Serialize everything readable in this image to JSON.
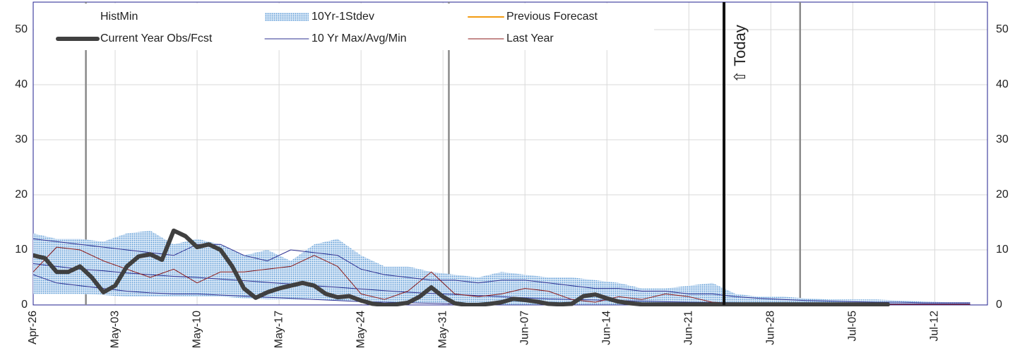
{
  "chart_data": {
    "type": "line",
    "xlim": [
      0,
      81.5
    ],
    "ylim": [
      0,
      55
    ],
    "y2lim": [
      0,
      55
    ],
    "xticks": [
      {
        "value": 0,
        "label": "Apr-26"
      },
      {
        "value": 7,
        "label": "May-03"
      },
      {
        "value": 14,
        "label": "May-10"
      },
      {
        "value": 21,
        "label": "May-17"
      },
      {
        "value": 28,
        "label": "May-24"
      },
      {
        "value": 35,
        "label": "May-31"
      },
      {
        "value": 42,
        "label": "Jun-07"
      },
      {
        "value": 49,
        "label": "Jun-14"
      },
      {
        "value": 56,
        "label": "Jun-21"
      },
      {
        "value": 63,
        "label": "Jun-28"
      },
      {
        "value": 70,
        "label": "Jul-05"
      },
      {
        "value": 77,
        "label": "Jul-12"
      }
    ],
    "yticks": [
      0,
      10,
      20,
      30,
      40,
      50
    ],
    "y2ticks": [
      0,
      10,
      20,
      30,
      40,
      50
    ],
    "grid": true,
    "month_lines": [
      4.5,
      35.5,
      65.5
    ],
    "today": {
      "x": 59,
      "label": "⇧ Today"
    },
    "series": [
      {
        "name": "HistMin",
        "style": "line",
        "color": "none",
        "width": 1,
        "x": [
          0,
          2,
          4,
          6,
          8,
          10,
          12,
          14,
          16,
          18,
          20,
          22,
          24,
          26,
          28,
          30,
          32,
          34,
          36,
          38,
          40,
          42,
          44,
          46,
          48,
          50,
          52,
          54,
          56,
          58,
          60,
          62,
          64,
          66,
          68,
          70,
          72,
          74,
          76,
          78,
          80
        ],
        "values": [
          0,
          0,
          0,
          0,
          0,
          0,
          0,
          0,
          0,
          0,
          0,
          0,
          0,
          0,
          0,
          0,
          0,
          0,
          0,
          0,
          0,
          0,
          0,
          0,
          0,
          0,
          0,
          0,
          0,
          0,
          0,
          0,
          0,
          0,
          0,
          0,
          0,
          0,
          0,
          0,
          0
        ]
      },
      {
        "name": "Current Year Obs/Fcst",
        "style": "line",
        "color": "#404040",
        "width": 6,
        "x": [
          0,
          1,
          2,
          3,
          4,
          5,
          6,
          7,
          8,
          9,
          10,
          11,
          12,
          13,
          14,
          15,
          16,
          17,
          18,
          19,
          20,
          21,
          22,
          23,
          24,
          25,
          26,
          27,
          28,
          29,
          30,
          31,
          32,
          33,
          34,
          35,
          36,
          37,
          38,
          39,
          40,
          41,
          42,
          43,
          44,
          45,
          46,
          47,
          48,
          49,
          50,
          51,
          52,
          53,
          54,
          55,
          56,
          57,
          58,
          59,
          60,
          61,
          62,
          63,
          64,
          65,
          66,
          67,
          68,
          69,
          70,
          71,
          72,
          73
        ],
        "values": [
          9,
          8.5,
          6,
          6,
          7,
          5,
          2.3,
          3.5,
          7,
          8.8,
          9.2,
          8.2,
          13.5,
          12.5,
          10.5,
          11,
          10,
          7,
          3,
          1.3,
          2.3,
          3,
          3.5,
          4,
          3.5,
          2,
          1.4,
          1.6,
          0.8,
          0.2,
          0,
          0.1,
          0.4,
          1.5,
          3.2,
          1.5,
          0.3,
          0,
          0,
          0.2,
          0.5,
          1.1,
          0.9,
          0.6,
          0.2,
          0.1,
          0.2,
          1.6,
          1.9,
          1.2,
          0.6,
          0.3,
          0.1,
          0.1,
          0.1,
          0.1,
          0.1,
          0.1,
          0.1,
          0.1,
          0.1,
          0.1,
          0.1,
          0.1,
          0.1,
          0.1,
          0.1,
          0.1,
          0.1,
          0.1,
          0.1,
          0.1,
          0.1,
          0.1
        ]
      },
      {
        "name": "10Yr-1Stdev",
        "style": "band",
        "color": "#5b9bd5",
        "x": [
          0,
          2,
          4,
          6,
          8,
          10,
          12,
          14,
          16,
          18,
          20,
          22,
          24,
          26,
          28,
          30,
          32,
          34,
          36,
          38,
          40,
          42,
          44,
          46,
          48,
          50,
          52,
          54,
          56,
          58,
          60,
          62,
          64,
          66,
          68,
          70,
          72,
          74,
          76,
          78,
          80
        ],
        "upper": [
          13,
          12,
          12,
          11.5,
          13,
          13.5,
          11,
          12,
          11,
          9,
          10,
          8,
          11,
          12,
          9,
          7,
          7,
          6,
          5.5,
          5,
          6,
          5.5,
          5,
          5,
          4.5,
          4,
          3,
          3,
          3.5,
          4,
          2,
          1.5,
          1.5,
          1.2,
          1,
          1,
          1,
          0.8,
          0.6,
          0.5,
          0.5
        ],
        "lower": [
          2,
          2,
          2,
          1.8,
          1.5,
          1.5,
          1.5,
          1.5,
          1.5,
          1.2,
          1,
          1,
          1,
          0.8,
          0.6,
          0.5,
          0.5,
          0.4,
          0.3,
          0.2,
          0,
          0,
          0,
          0,
          0,
          0,
          0,
          0,
          0,
          0,
          0,
          0,
          0,
          0,
          0,
          0,
          0,
          0,
          0,
          0,
          0
        ]
      },
      {
        "name": "10 Yr Max/Avg/Min",
        "style": "maxavgmin",
        "color": "#2e3192",
        "width": 1,
        "x": [
          0,
          2,
          4,
          6,
          8,
          10,
          12,
          14,
          16,
          18,
          20,
          22,
          24,
          26,
          28,
          30,
          32,
          34,
          36,
          38,
          40,
          42,
          44,
          46,
          48,
          50,
          52,
          54,
          56,
          58,
          60,
          62,
          64,
          66,
          68,
          70,
          72,
          74,
          76,
          78,
          80
        ],
        "max": [
          12,
          11.5,
          11,
          10.5,
          10,
          9.5,
          9,
          11,
          11,
          9,
          8,
          10,
          9.5,
          9,
          6.5,
          5.5,
          5,
          4.5,
          4.5,
          4,
          4.5,
          4.5,
          4,
          3.5,
          3,
          3,
          2.5,
          2.5,
          2,
          2,
          1.5,
          1.2,
          1,
          0.8,
          0.7,
          0.6,
          0.5,
          0.5,
          0.4,
          0.4,
          0.4
        ],
        "avg": [
          7.5,
          7,
          6.5,
          6.2,
          5.8,
          5.5,
          5.2,
          5,
          4.7,
          4.4,
          4.1,
          3.8,
          3.5,
          3.2,
          2.9,
          2.6,
          2.3,
          2.1,
          1.9,
          1.7,
          1.5,
          1.3,
          1.1,
          1,
          0.9,
          0.8,
          0.7,
          0.6,
          0.5,
          0.45,
          0.4,
          0.35,
          0.3,
          0.3,
          0.25,
          0.25,
          0.2,
          0.2,
          0.2,
          0.2,
          0.2
        ],
        "min": [
          5.5,
          4,
          3.5,
          3,
          2.5,
          2.2,
          2,
          2,
          1.8,
          1.6,
          1.4,
          1.2,
          1,
          0.8,
          0.6,
          0.5,
          0.4,
          0.3,
          0.2,
          0.1,
          0,
          0,
          0,
          0,
          0,
          0,
          0,
          0,
          0,
          0,
          0,
          0,
          0,
          0,
          0,
          0,
          0,
          0,
          0,
          0,
          0
        ]
      },
      {
        "name": "Previous Forecast",
        "style": "line",
        "color": "#f39c12",
        "width": 2,
        "x": [
          59,
          61,
          63,
          65,
          67,
          69,
          71,
          73
        ],
        "values": [
          0.1,
          0.1,
          0.1,
          0.1,
          0.1,
          0.1,
          0.1,
          0.1
        ]
      },
      {
        "name": "Last Year",
        "style": "line",
        "color": "#8b1a1a",
        "width": 1,
        "x": [
          0,
          2,
          4,
          6,
          8,
          10,
          12,
          14,
          16,
          18,
          20,
          22,
          24,
          26,
          28,
          30,
          32,
          34,
          36,
          38,
          40,
          42,
          44,
          46,
          48,
          50,
          52,
          54,
          56,
          58,
          60,
          62,
          64,
          66,
          68,
          70,
          72,
          74,
          76,
          78,
          80
        ],
        "values": [
          6,
          10.5,
          10,
          8,
          6.5,
          5,
          6.5,
          4,
          6,
          6,
          6.5,
          7,
          9,
          7,
          2,
          1,
          2.5,
          6,
          2,
          1.5,
          2,
          3,
          2.5,
          1,
          0.5,
          1.5,
          1,
          2,
          1.5,
          0.5,
          0.3,
          0.2,
          0.2,
          0.2,
          0.1,
          0.1,
          0.1,
          0.1,
          0.1,
          0.1,
          0.1
        ]
      }
    ]
  }
}
